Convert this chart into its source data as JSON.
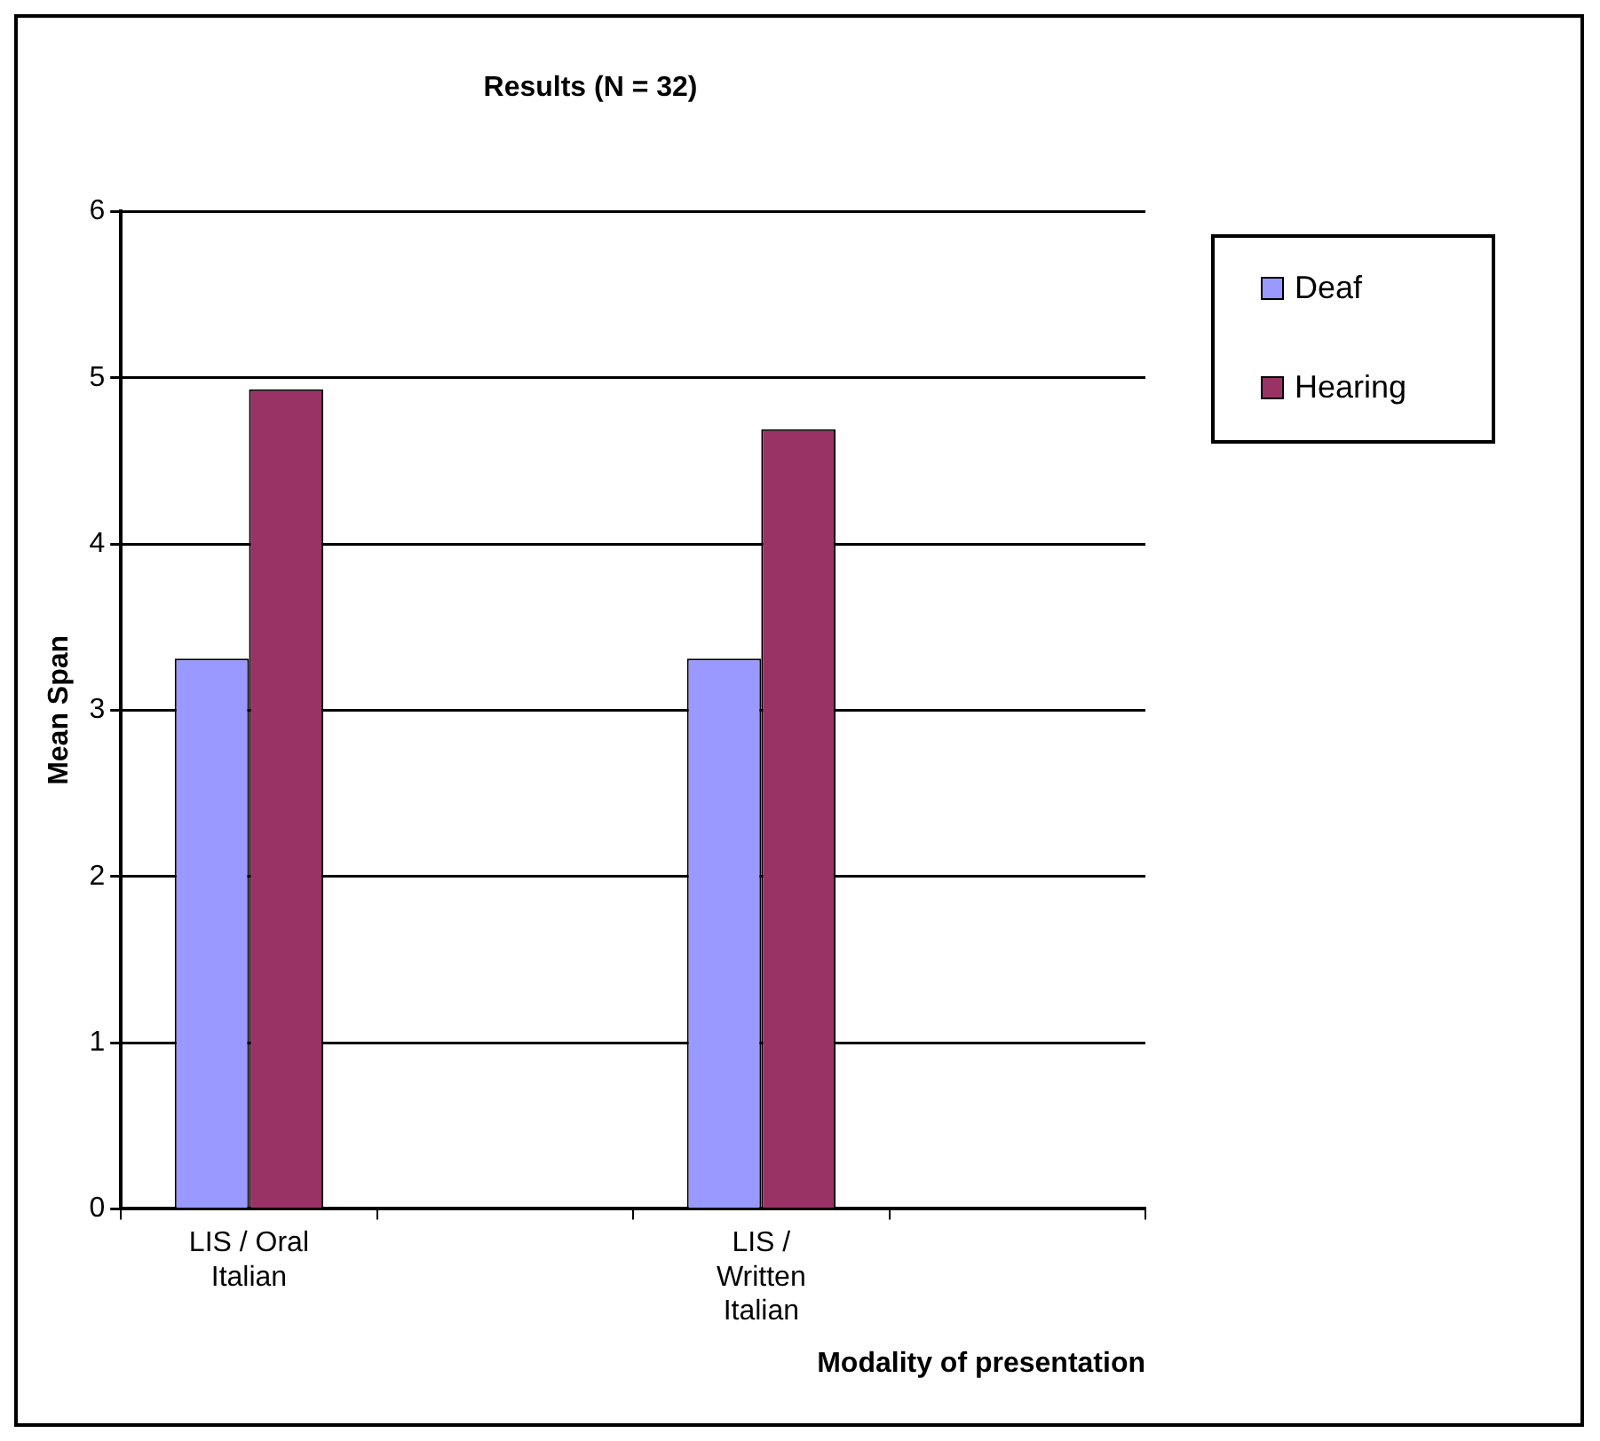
{
  "chart_data": {
    "type": "bar",
    "title": "Results (N = 32)",
    "xlabel": "Modality of presentation",
    "ylabel": "Mean Span",
    "categories": [
      "LIS / Oral Italian",
      null,
      "LIS / Written Italian",
      null
    ],
    "series": [
      {
        "name": "Deaf",
        "color": "#9999ff",
        "values": [
          3.31,
          null,
          3.31,
          null
        ]
      },
      {
        "name": "Hearing",
        "color": "#993366",
        "values": [
          4.93,
          null,
          4.69,
          null
        ]
      }
    ],
    "ylim": [
      0,
      6
    ],
    "yticks": [
      0,
      1,
      2,
      3,
      4,
      5,
      6
    ],
    "grid": "y",
    "legend": "top right"
  }
}
